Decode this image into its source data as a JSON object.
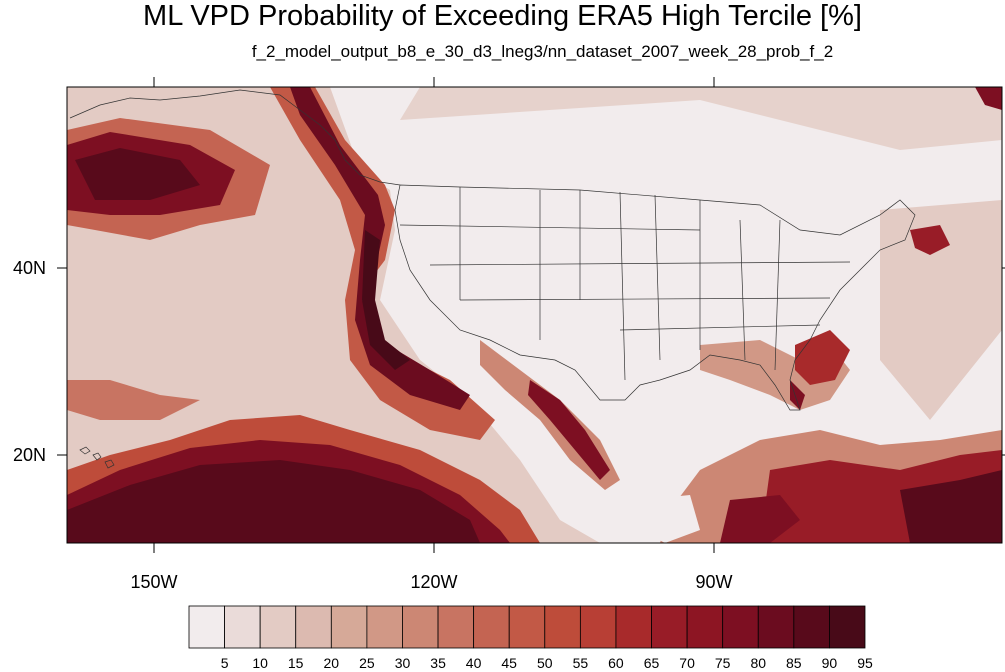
{
  "title": "ML VPD Probability of Exceeding ERA5 High Tercile [%]",
  "subtitle": "f_2_model_output_b8_e_30_d3_lneg3/nn_dataset_2007_week_28_prob_f_2",
  "map": {
    "lat_labels": [
      "40N",
      "20N"
    ],
    "lon_labels": [
      "150W",
      "120W",
      "90W"
    ]
  },
  "colorbar": {
    "labels": [
      "5",
      "10",
      "15",
      "20",
      "25",
      "30",
      "35",
      "40",
      "45",
      "50",
      "55",
      "60",
      "65",
      "70",
      "75",
      "80",
      "85",
      "90",
      "95"
    ],
    "colors": [
      "#f2eced",
      "#eadbd9",
      "#e3cbc4",
      "#dcbab0",
      "#d6a998",
      "#d19886",
      "#cc8774",
      "#c87462",
      "#c46452",
      "#c25946",
      "#be4c3a",
      "#b83f35",
      "#a82a2b",
      "#981c27",
      "#8d1523",
      "#7d0f22",
      "#6b0c1f",
      "#580a1b",
      "#480a18"
    ]
  }
}
